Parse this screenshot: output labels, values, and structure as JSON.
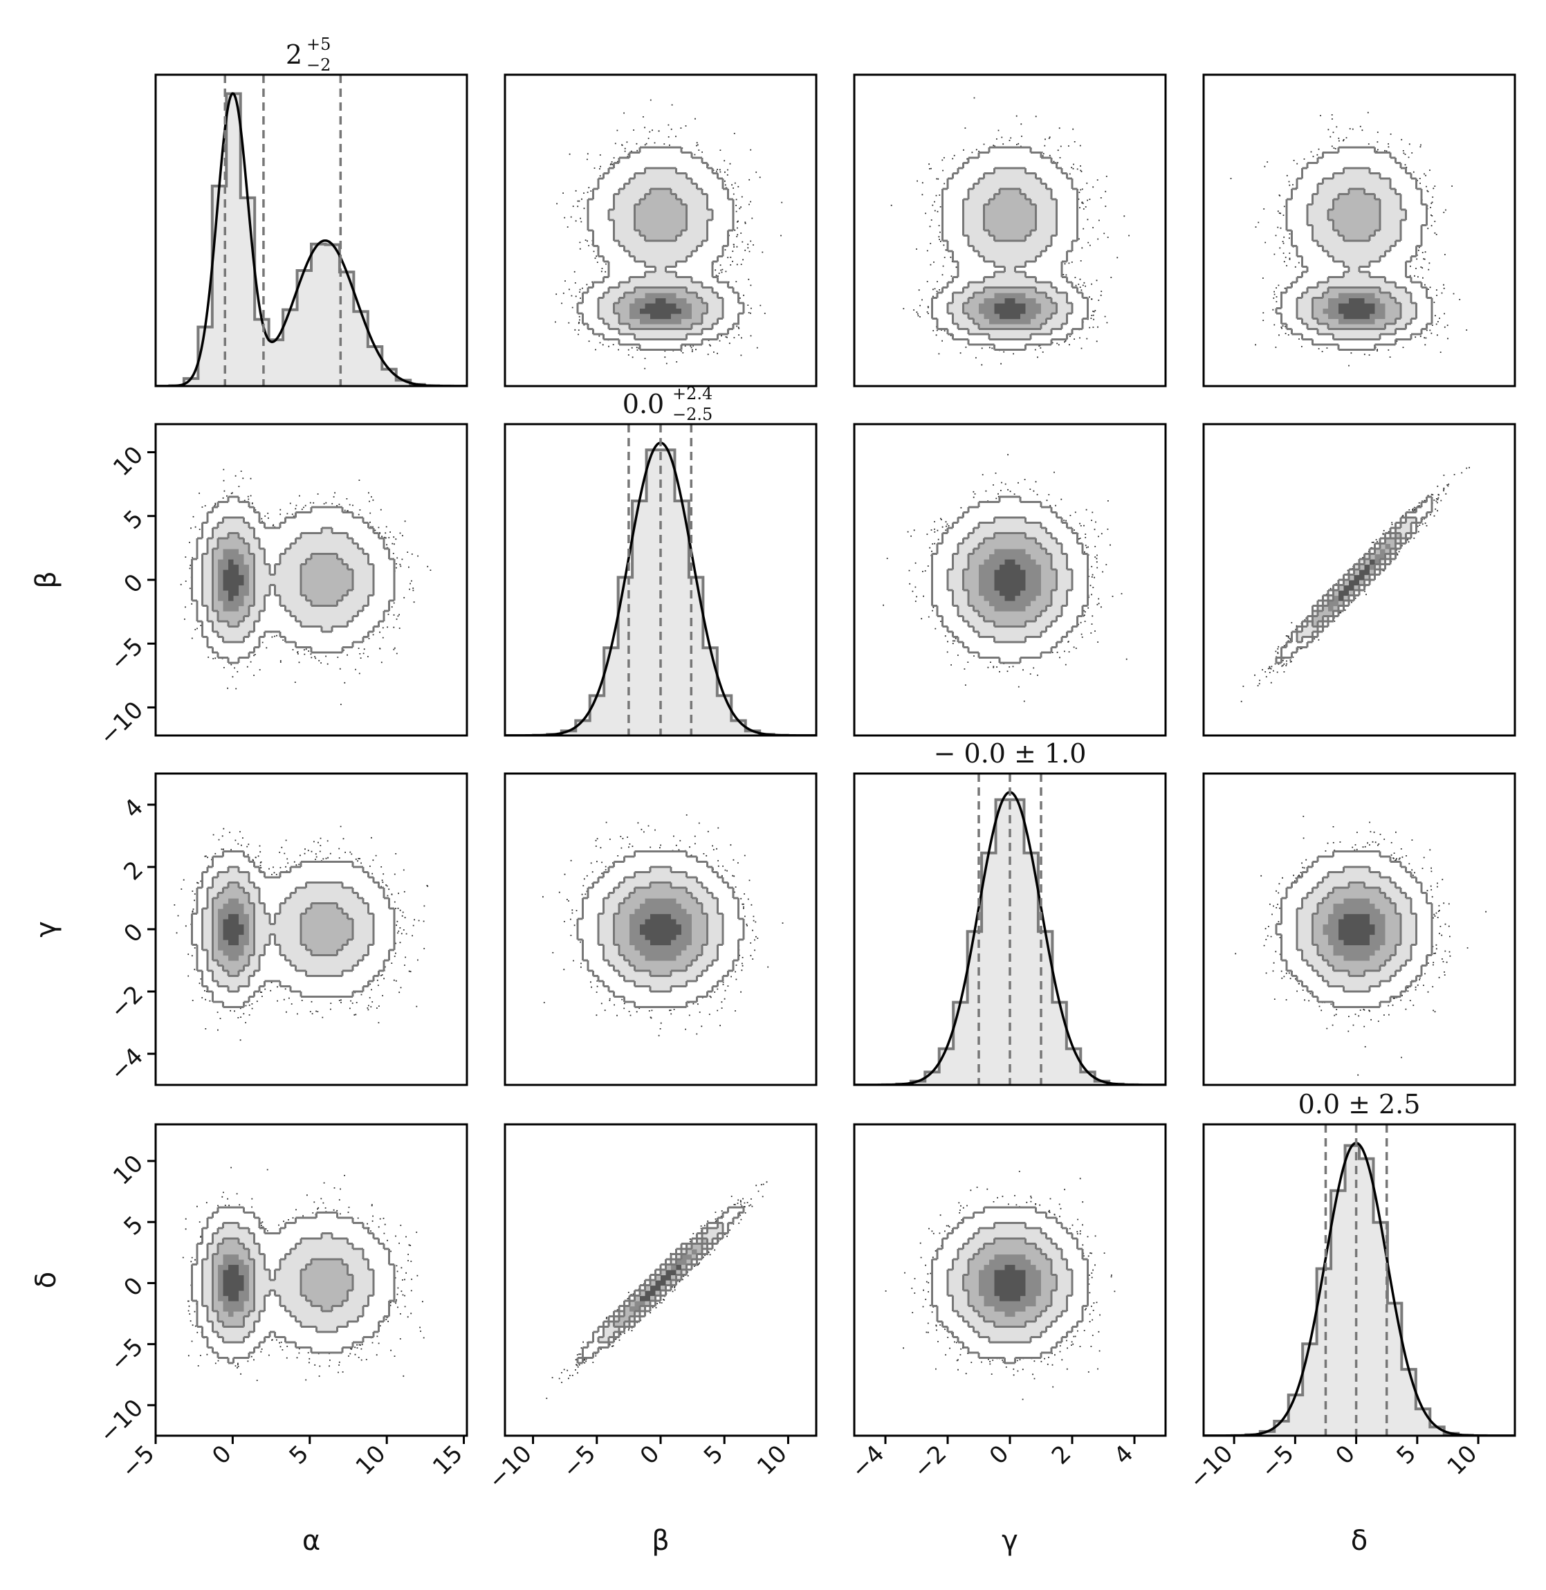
{
  "chart_data": {
    "type": "corner",
    "parameters": [
      {
        "name": "α",
        "range": [
          -5,
          15.2
        ],
        "ticks": [
          -5,
          0,
          5,
          10,
          15
        ],
        "tick_labels": [
          "−5",
          "0",
          "5",
          "10",
          "15"
        ]
      },
      {
        "name": "β",
        "range": [
          -12.2,
          12.2
        ],
        "ticks": [
          -10,
          -5,
          0,
          5,
          10
        ],
        "tick_labels": [
          "−10",
          "−5",
          "0",
          "5",
          "10"
        ]
      },
      {
        "name": "γ",
        "range": [
          -5,
          5
        ],
        "ticks": [
          -4,
          -2,
          0,
          2,
          4
        ],
        "tick_labels": [
          "−4",
          "−2",
          "0",
          "2",
          "4"
        ]
      },
      {
        "name": "δ",
        "range": [
          -12.5,
          13
        ],
        "ticks": [
          -10,
          -5,
          0,
          5,
          10
        ],
        "tick_labels": [
          "−10",
          "−5",
          "0",
          "5",
          "10"
        ]
      }
    ],
    "diagonal_titles": [
      {
        "main": "2",
        "sup": "+5",
        "sub": "−2"
      },
      {
        "main": "0.0",
        "sup": "+2.4",
        "sub": "−2.5"
      },
      {
        "main": "− 0.0 ± 1.0",
        "sup": "",
        "sub": ""
      },
      {
        "main": "0.0 ± 2.5",
        "sup": "",
        "sub": ""
      }
    ],
    "quantiles": [
      [
        -0.5,
        2.0,
        7.0
      ],
      [
        -2.5,
        0.0,
        2.4
      ],
      [
        -1.0,
        0.0,
        1.0
      ],
      [
        -2.5,
        0.0,
        2.5
      ]
    ],
    "marginals": [
      {
        "components": [
          {
            "weight": 0.5,
            "mean": 0,
            "sd": 1
          },
          {
            "weight": 0.5,
            "mean": 6,
            "sd": 2
          }
        ]
      },
      {
        "components": [
          {
            "weight": 1,
            "mean": 0,
            "sd": 2.5
          }
        ]
      },
      {
        "components": [
          {
            "weight": 1,
            "mean": 0,
            "sd": 1
          }
        ]
      },
      {
        "components": [
          {
            "weight": 1,
            "mean": 0,
            "sd": 2.5
          }
        ]
      }
    ],
    "correlations": [
      [
        1,
        0,
        0,
        0
      ],
      [
        0,
        1,
        0,
        0.98
      ],
      [
        0,
        0,
        1,
        0
      ],
      [
        0,
        0.98,
        0,
        1
      ]
    ],
    "colors": {
      "fill": "#e8e8e8",
      "step": "#7a7a7a",
      "kde": "#000000",
      "quantile_line": "#777777",
      "points": "#000000",
      "contour": "#777777",
      "frame": "#000000"
    },
    "legend": "none",
    "grid": false
  }
}
